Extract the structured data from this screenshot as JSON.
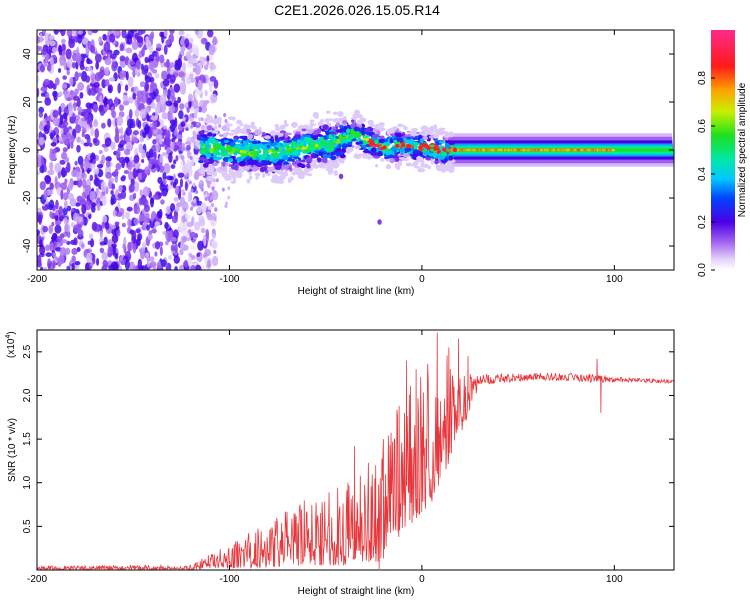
{
  "chart_data": [
    {
      "type": "heatmap",
      "title": "C2E1.2026.026.15.05.R14",
      "xlabel": "Height of straight line (km)",
      "ylabel": "Frequency (Hz)",
      "xlim": [
        -200,
        131
      ],
      "ylim": [
        -50,
        50
      ],
      "xticks": [
        "-200",
        "-100",
        "0",
        "100"
      ],
      "xtick_values": [
        -200,
        -100,
        0,
        100
      ],
      "yticks": [
        "40",
        "20",
        "0",
        "-20",
        "-40"
      ],
      "ytick_values": [
        40,
        20,
        0,
        -20,
        -40
      ],
      "colorbar": {
        "label": "Normalized spectral amplitude",
        "range": [
          0,
          1
        ],
        "ticks": [
          "0.0",
          "0.2",
          "0.4",
          "0.6",
          "0.8"
        ],
        "tick_values": [
          0.0,
          0.2,
          0.4,
          0.6,
          0.8
        ]
      },
      "features": {
        "noise_region_km": [
          -200,
          -115
        ],
        "noise_freq_range_hz": [
          -50,
          50
        ],
        "signal_track_center_hz": [
          [
            -115,
            1
          ],
          [
            -100,
            0
          ],
          [
            -90,
            -1
          ],
          [
            -75,
            -1
          ],
          [
            -60,
            1
          ],
          [
            -45,
            3
          ],
          [
            -35,
            7
          ],
          [
            -28,
            4
          ],
          [
            -20,
            1
          ],
          [
            -10,
            2
          ],
          [
            0,
            1
          ],
          [
            15,
            0
          ],
          [
            50,
            0
          ],
          [
            100,
            0
          ],
          [
            131,
            0
          ]
        ],
        "outlier_points": [
          [
            -22,
            -30
          ],
          [
            -42,
            -11
          ]
        ]
      }
    },
    {
      "type": "line",
      "xlabel": "Height of straight line (km)",
      "ylabel": "SNR (10 * v/v)",
      "yscale_label": "(x10",
      "yscale_exponent": "4",
      "xlim": [
        -200,
        131
      ],
      "ylim": [
        0,
        2.75
      ],
      "xticks": [
        "-200",
        "-100",
        "0",
        "100"
      ],
      "xtick_values": [
        -200,
        -100,
        0,
        100
      ],
      "yticks": [
        "0.5",
        "1.0",
        "1.5",
        "2.0",
        "2.5"
      ],
      "ytick_values": [
        0.5,
        1.0,
        1.5,
        2.0,
        2.5
      ],
      "series": [
        {
          "name": "SNR",
          "color": "#e8373c",
          "envelope": [
            {
              "x": -200,
              "base": 0.02,
              "amp": 0.02
            },
            {
              "x": -120,
              "base": 0.02,
              "amp": 0.03
            },
            {
              "x": -110,
              "base": 0.08,
              "amp": 0.08
            },
            {
              "x": -100,
              "base": 0.12,
              "amp": 0.14
            },
            {
              "x": -80,
              "base": 0.22,
              "amp": 0.28
            },
            {
              "x": -60,
              "base": 0.32,
              "amp": 0.38
            },
            {
              "x": -40,
              "base": 0.4,
              "amp": 0.5
            },
            {
              "x": -30,
              "base": 0.5,
              "amp": 0.6
            },
            {
              "x": -22,
              "base": 0.5,
              "amp": 0.7
            },
            {
              "x": -15,
              "base": 0.9,
              "amp": 0.7
            },
            {
              "x": -5,
              "base": 1.1,
              "amp": 0.8
            },
            {
              "x": 5,
              "base": 1.4,
              "amp": 0.9
            },
            {
              "x": 15,
              "base": 1.7,
              "amp": 0.6
            },
            {
              "x": 22,
              "base": 1.9,
              "amp": 0.35
            },
            {
              "x": 30,
              "base": 2.18,
              "amp": 0.06
            },
            {
              "x": 60,
              "base": 2.22,
              "amp": 0.04
            },
            {
              "x": 90,
              "base": 2.2,
              "amp": 0.05
            },
            {
              "x": 100,
              "base": 2.18,
              "amp": 0.03
            },
            {
              "x": 131,
              "base": 2.16,
              "amp": 0.02
            }
          ],
          "peaks": [
            {
              "x": 8,
              "y": 2.72
            },
            {
              "x": 19,
              "y": 2.65
            },
            {
              "x": 14,
              "y": 2.55
            },
            {
              "x": -8,
              "y": 2.4
            },
            {
              "x": 24,
              "y": 2.45
            },
            {
              "x": -35,
              "y": 1.42
            },
            {
              "x": -20,
              "y": 1.5
            },
            {
              "x": 91,
              "y": 2.42
            },
            {
              "x": -3,
              "y": 2.3
            },
            {
              "x": -24,
              "y": 1.2
            }
          ],
          "dips": [
            {
              "x": 93,
              "y": 1.8
            },
            {
              "x": -12,
              "y": 0.38
            },
            {
              "x": 2,
              "y": 1.0
            }
          ]
        }
      ]
    }
  ]
}
